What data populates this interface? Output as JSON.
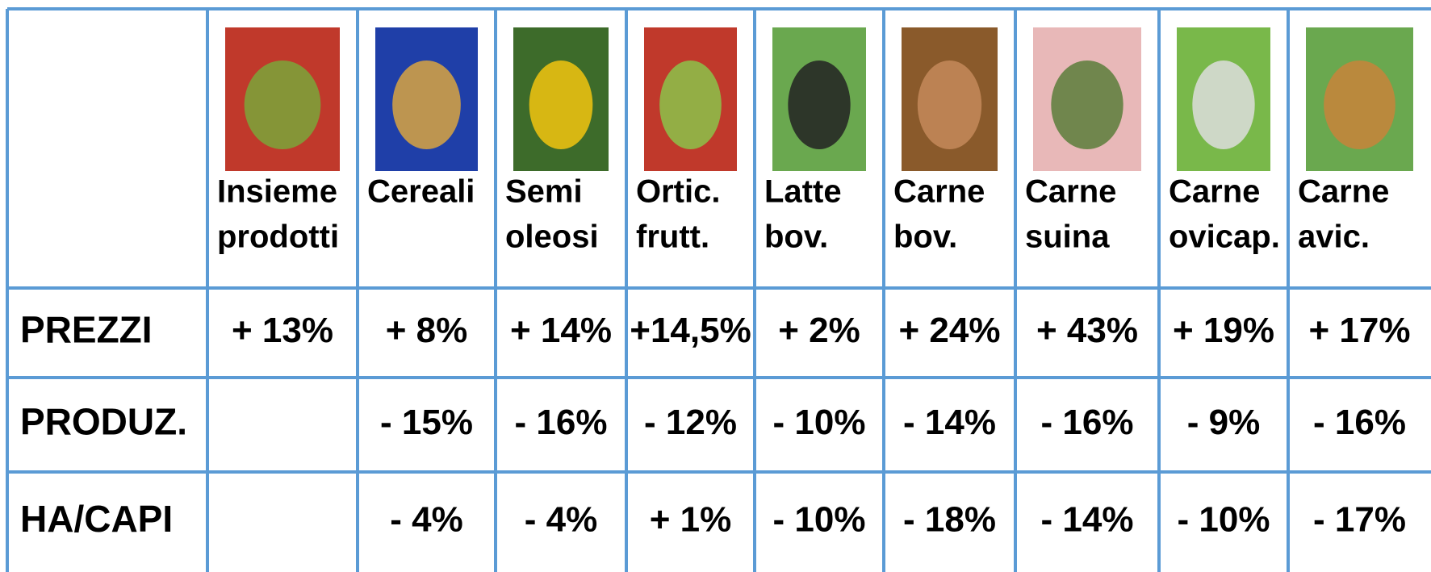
{
  "table": {
    "columns": [
      [
        "Insieme",
        "prodotti"
      ],
      [
        "Cereali"
      ],
      [
        "Semi",
        "oleosi"
      ],
      [
        "Ortic.",
        "frutt."
      ],
      [
        "Latte",
        "bov."
      ],
      [
        "Carne",
        "bov."
      ],
      [
        "Carne",
        "suina"
      ],
      [
        "Carne",
        "ovicap."
      ],
      [
        "Carne",
        "avic."
      ]
    ],
    "rows": [
      {
        "label": "PREZZI",
        "cells": [
          "+ 13%",
          "+ 8%",
          "+ 14%",
          "+14,5%",
          "+ 2%",
          "+ 24%",
          "+ 43%",
          "+ 19%",
          "+ 17%"
        ]
      },
      {
        "label": "PRODUZ.",
        "cells": [
          null,
          "- 15%",
          "- 16%",
          "- 12%",
          "- 10%",
          "- 14%",
          "- 16%",
          "- 9%",
          "- 16%"
        ]
      },
      {
        "label": "HA/CAPI",
        "cells": [
          null,
          "- 4%",
          "- 4%",
          "+ 1%",
          "- 10%",
          "- 18%",
          "- 14%",
          "- 10%",
          "- 17%"
        ]
      }
    ]
  }
}
